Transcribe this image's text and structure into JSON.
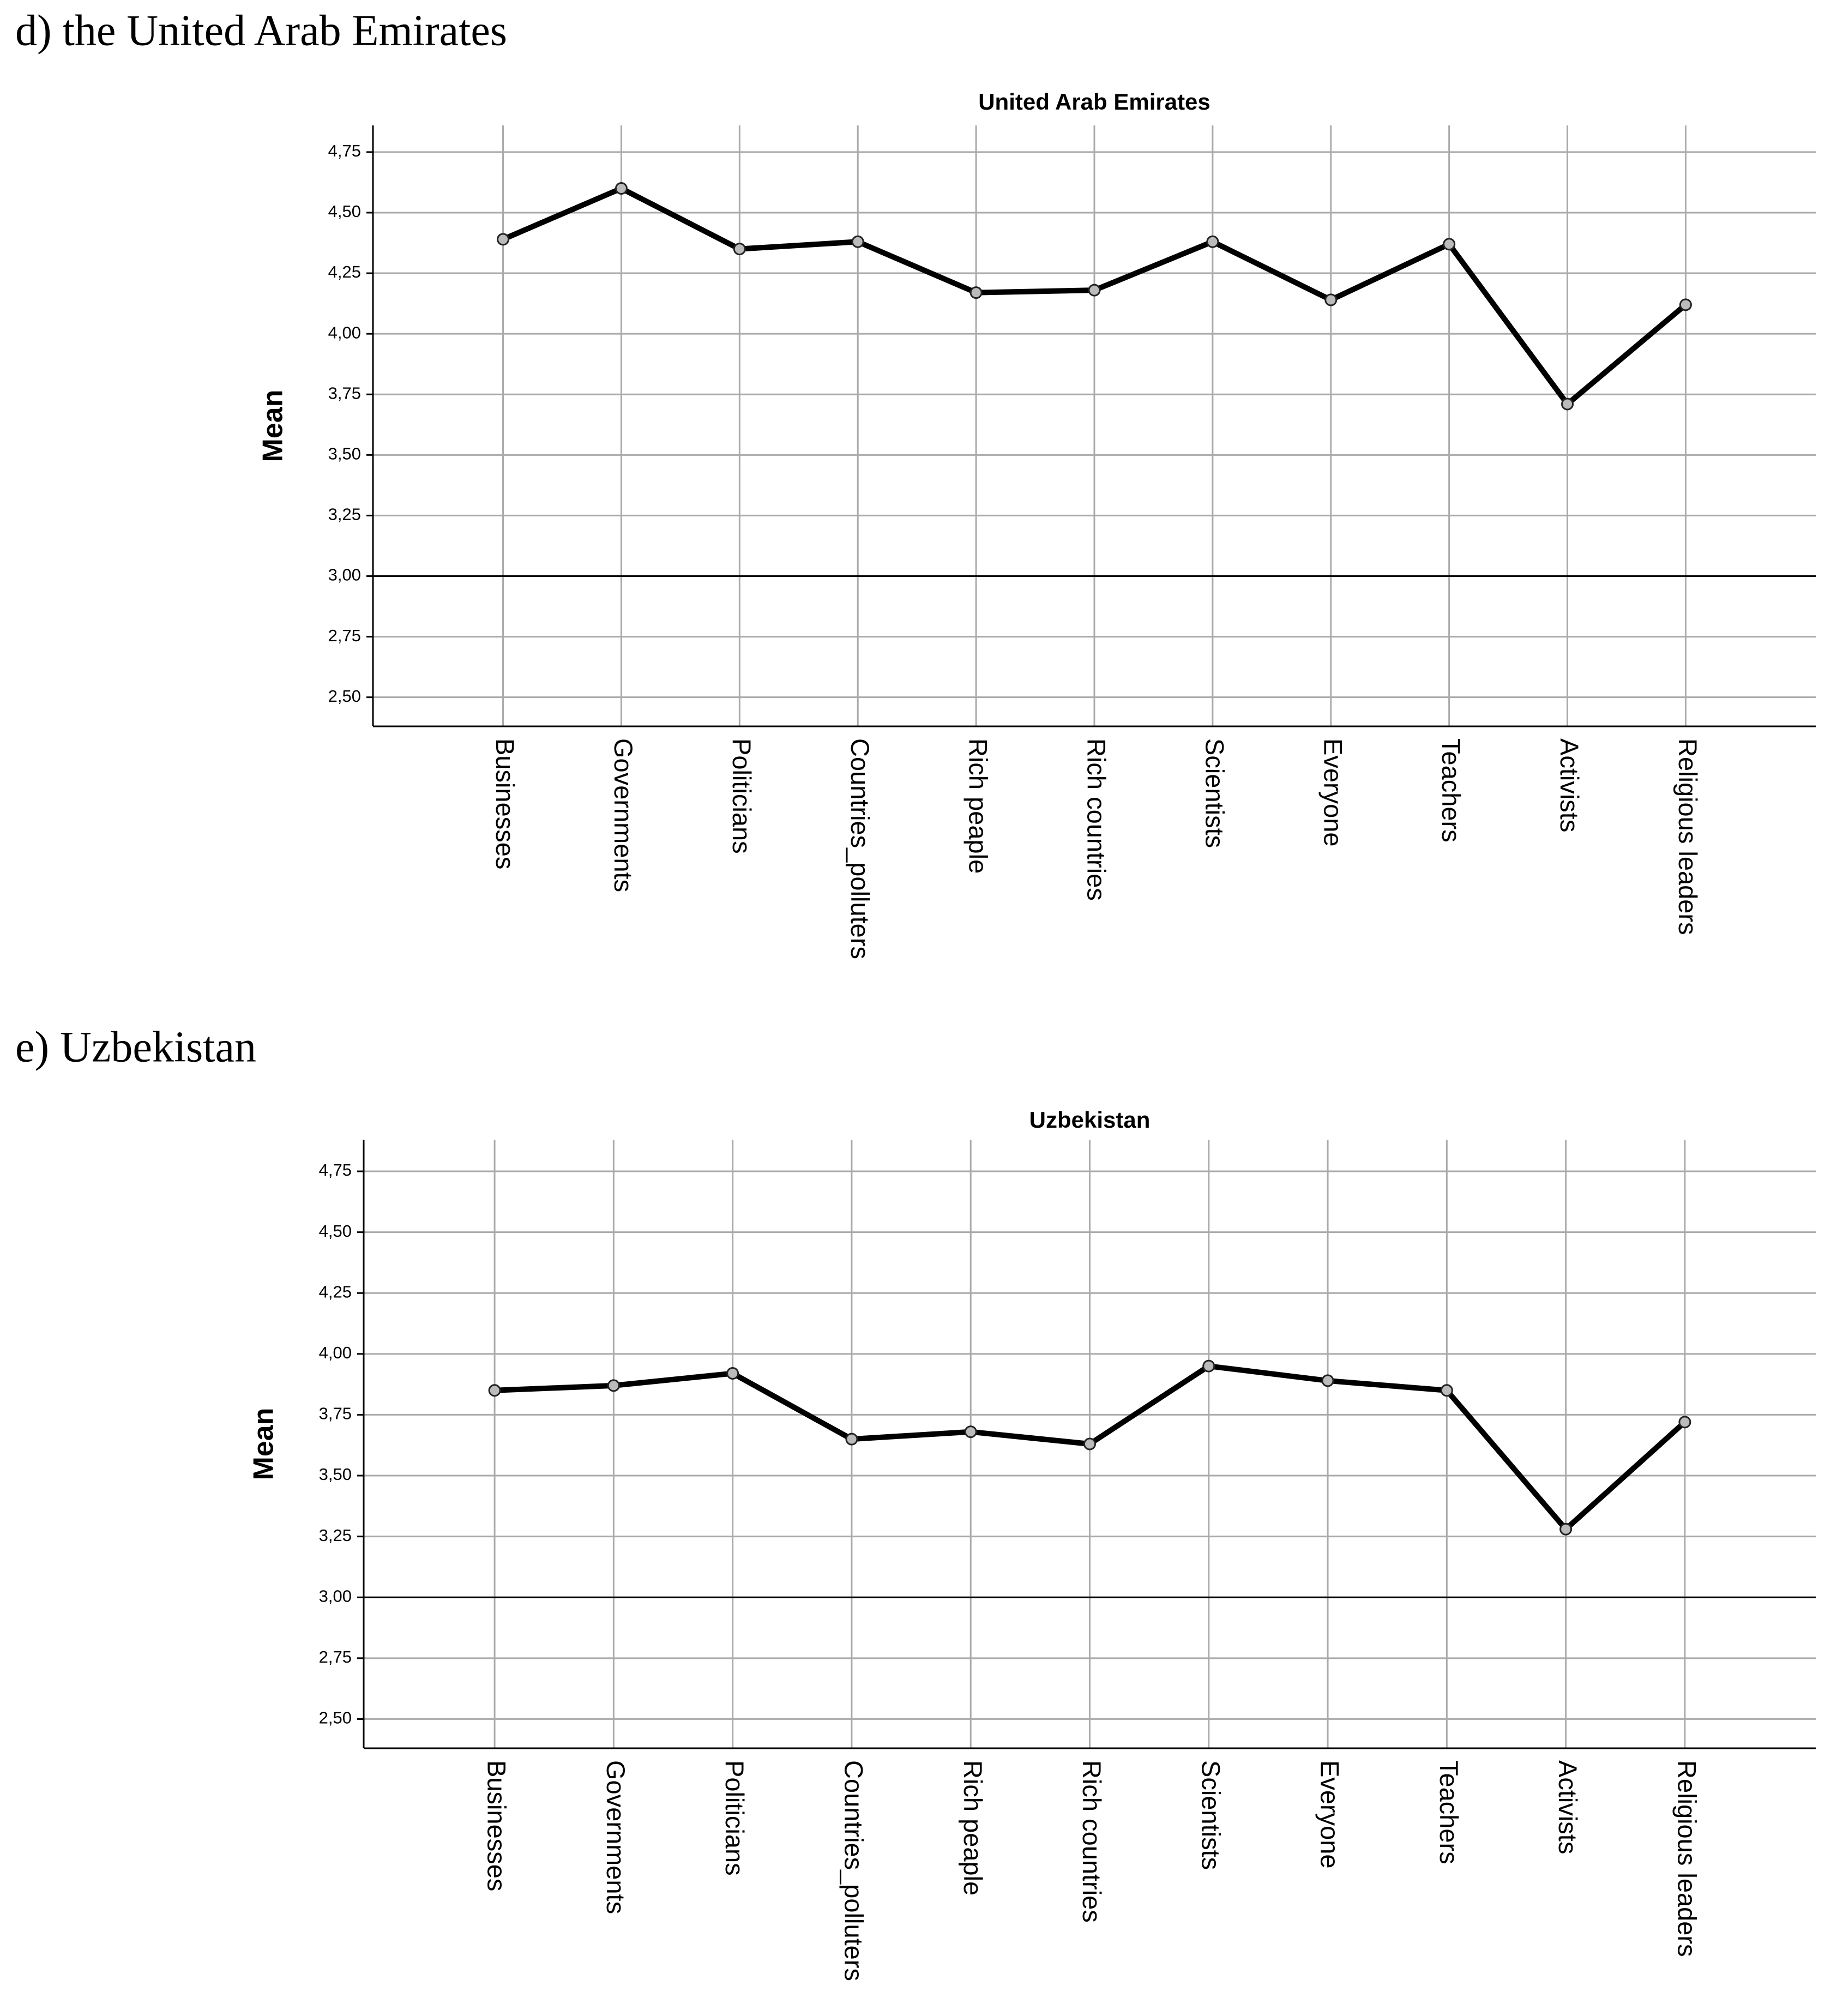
{
  "headings": [
    "d) the United Arab Emirates",
    "e) Uzbekistan"
  ],
  "chart_data": [
    {
      "type": "line",
      "title": "United Arab Emirates",
      "y_label": "Mean",
      "categories": [
        "Businesses",
        "Governments",
        "Politicians",
        "Countries_polluters",
        "Rich peaple",
        "Rich countries",
        "Scientists",
        "Everyone",
        "Teachers",
        "Activists",
        "Religious leaders"
      ],
      "series": [
        {
          "name": "Mean",
          "color": "#000000",
          "values": [
            4.39,
            4.6,
            4.35,
            4.38,
            4.17,
            4.18,
            4.38,
            4.14,
            4.37,
            3.71,
            4.12
          ]
        }
      ],
      "ylim": [
        2.38,
        4.86
      ],
      "yticks": [
        {
          "value": 2.5,
          "label": "2,50"
        },
        {
          "value": 2.75,
          "label": "2,75"
        },
        {
          "value": 3,
          "label": "3,00"
        },
        {
          "value": 3.25,
          "label": "3,25"
        },
        {
          "value": 3.5,
          "label": "3,50"
        },
        {
          "value": 3.75,
          "label": "3,75"
        },
        {
          "value": 4,
          "label": "4,00"
        },
        {
          "value": 4.25,
          "label": "4,25"
        },
        {
          "value": 4.5,
          "label": "4,50"
        },
        {
          "value": 4.75,
          "label": "4,75"
        }
      ],
      "reference_line": 3,
      "grid": true
    },
    {
      "type": "line",
      "title": "Uzbekistan",
      "y_label": "Mean",
      "categories": [
        "Businesses",
        "Governments",
        "Politicians",
        "Countries_polluters",
        "Rich peaple",
        "Rich countries",
        "Scientists",
        "Everyone",
        "Teachers",
        "Activists",
        "Religious leaders"
      ],
      "series": [
        {
          "name": "Mean",
          "color": "#000000",
          "values": [
            3.85,
            3.87,
            3.92,
            3.65,
            3.68,
            3.63,
            3.95,
            3.89,
            3.85,
            3.28,
            3.72
          ]
        }
      ],
      "ylim": [
        2.38,
        4.88
      ],
      "yticks": [
        {
          "value": 2.5,
          "label": "2,50"
        },
        {
          "value": 2.75,
          "label": "2,75"
        },
        {
          "value": 3,
          "label": "3,00"
        },
        {
          "value": 3.25,
          "label": "3,25"
        },
        {
          "value": 3.5,
          "label": "3,50"
        },
        {
          "value": 3.75,
          "label": "3,75"
        },
        {
          "value": 4,
          "label": "4,00"
        },
        {
          "value": 4.25,
          "label": "4,25"
        },
        {
          "value": 4.5,
          "label": "4,50"
        },
        {
          "value": 4.75,
          "label": "4,75"
        }
      ],
      "reference_line": 3,
      "grid": true
    }
  ]
}
